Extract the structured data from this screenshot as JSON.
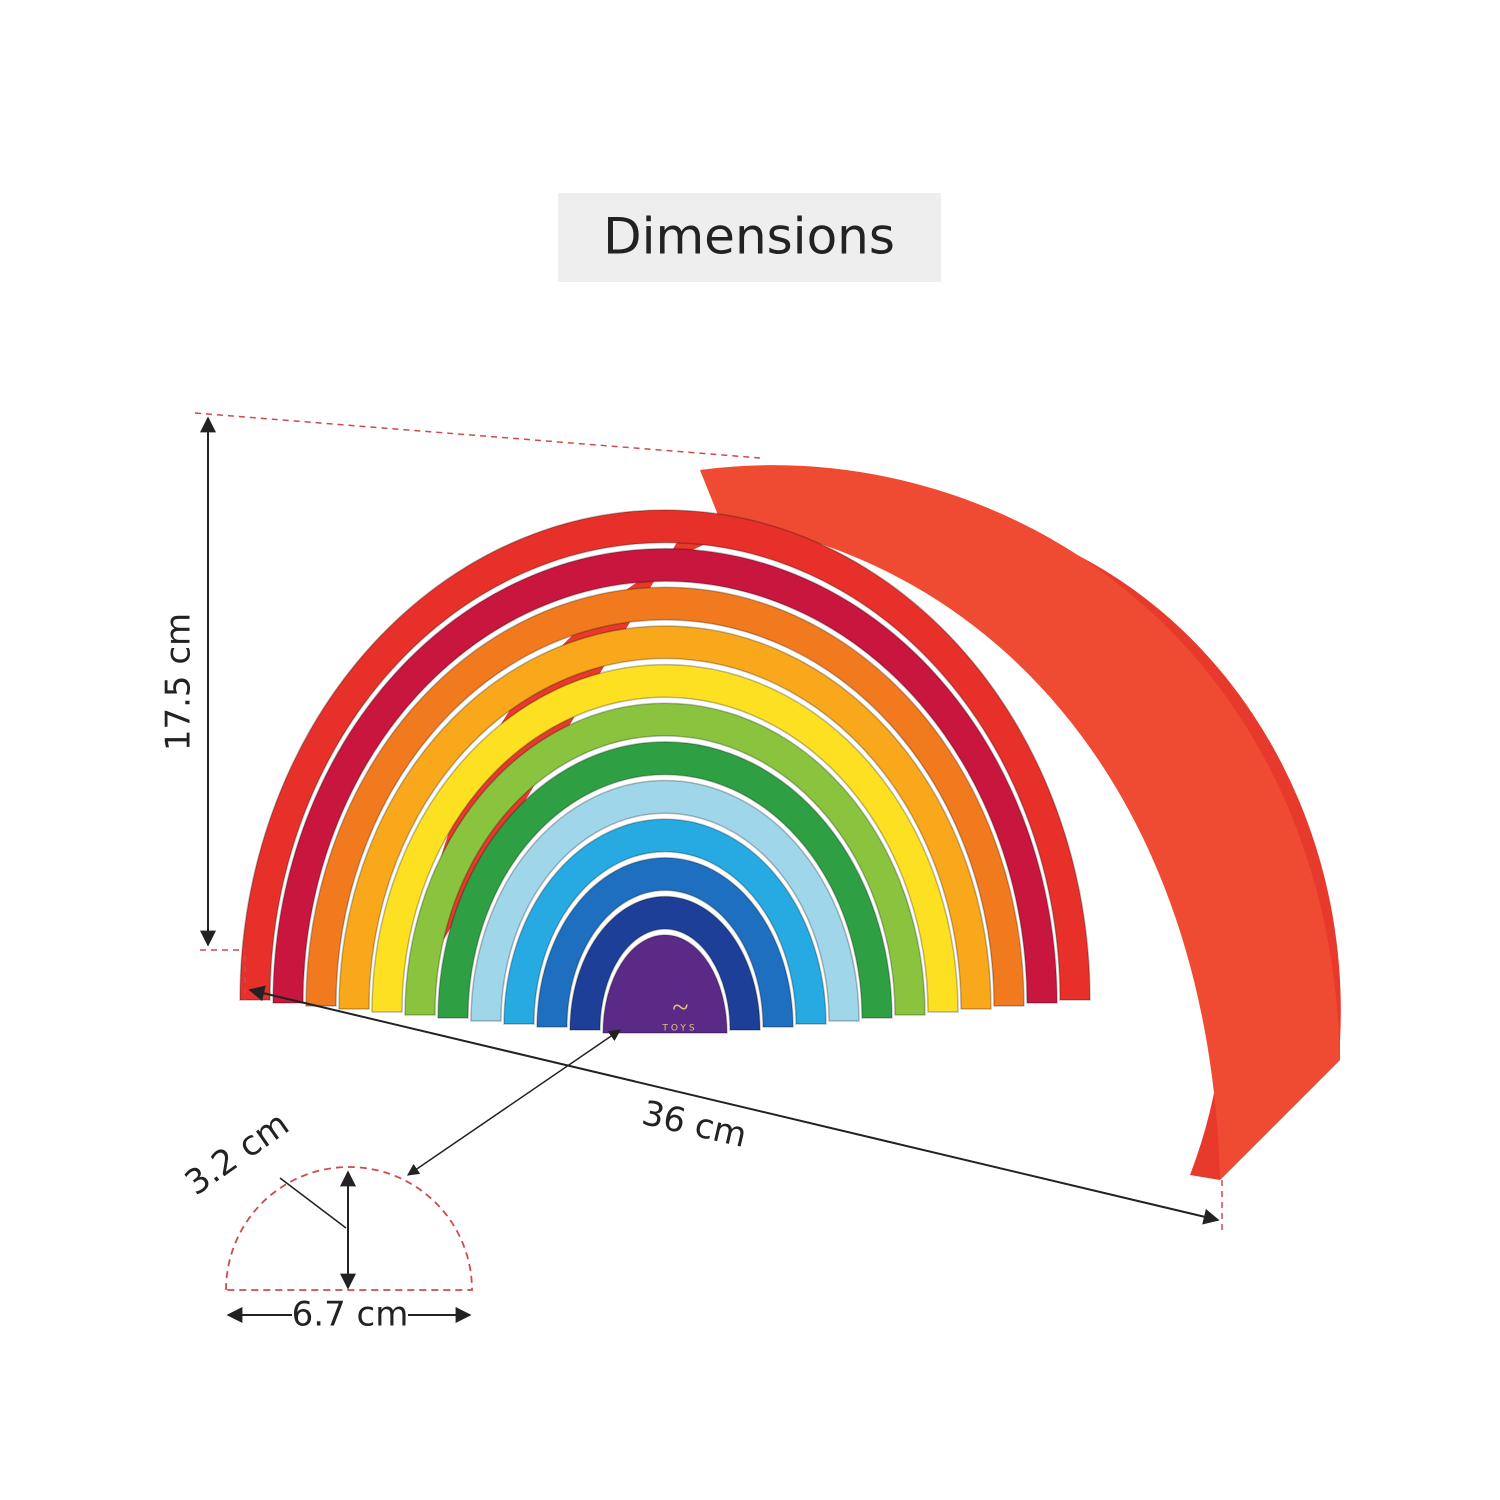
{
  "header": {
    "title": "Dimensions"
  },
  "dimensions": {
    "height": "17.5 cm",
    "length": "36 cm",
    "thickness": "3.2 cm",
    "width": "6.7 cm"
  },
  "logo": {
    "subtitle": "TOYS"
  }
}
